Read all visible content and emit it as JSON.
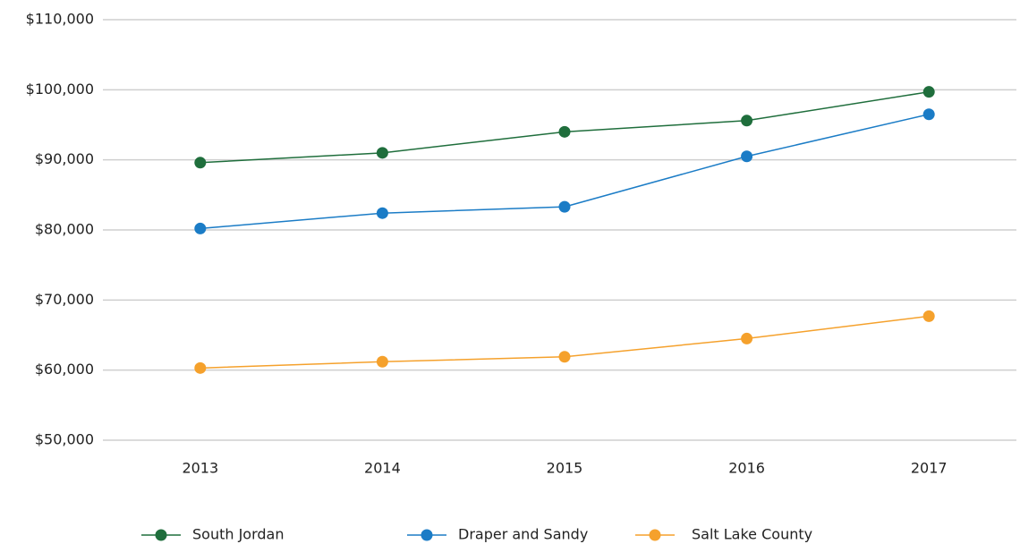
{
  "chart_data": {
    "type": "line",
    "categories": [
      "2013",
      "2014",
      "2015",
      "2016",
      "2017"
    ],
    "series": [
      {
        "name": "South Jordan",
        "color": "#1f6e3c",
        "values": [
          89600,
          91000,
          94000,
          95600,
          99700
        ]
      },
      {
        "name": "Draper and Sandy",
        "color": "#1b7cc6",
        "values": [
          80200,
          82400,
          83300,
          90500,
          96500
        ]
      },
      {
        "name": "Salt Lake County",
        "color": "#f5a12c",
        "values": [
          60300,
          61200,
          61900,
          64500,
          67700
        ]
      }
    ],
    "ylim": [
      50000,
      110000
    ],
    "yticks": [
      {
        "value": 50000,
        "label": "$50,000"
      },
      {
        "value": 60000,
        "label": "$60,000"
      },
      {
        "value": 70000,
        "label": "$70,000"
      },
      {
        "value": 80000,
        "label": "$80,000"
      },
      {
        "value": 90000,
        "label": "$90,000"
      },
      {
        "value": 100000,
        "label": "$100,000"
      },
      {
        "value": 110000,
        "label": "$110,000"
      }
    ],
    "grid": true,
    "legend": "bottom"
  }
}
